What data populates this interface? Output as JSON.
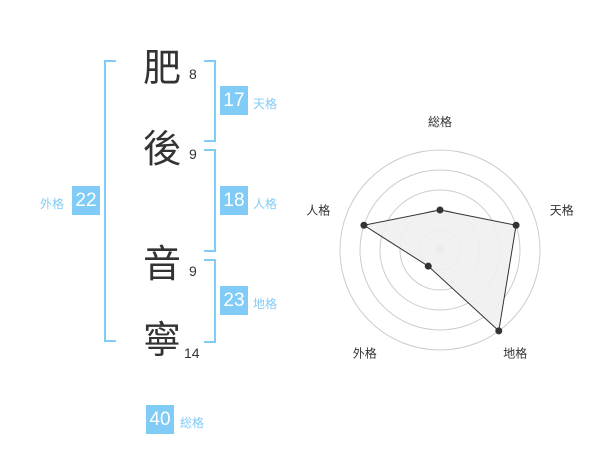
{
  "name": {
    "characters": [
      {
        "char": "肥",
        "strokes": "8"
      },
      {
        "char": "後",
        "strokes": "9"
      },
      {
        "char": "音",
        "strokes": "9"
      },
      {
        "char": "寧",
        "strokes": "14"
      }
    ]
  },
  "fortunes": {
    "tenkaku": {
      "label": "天格",
      "value": "17"
    },
    "jinkaku": {
      "label": "人格",
      "value": "18"
    },
    "chikaku": {
      "label": "地格",
      "value": "23"
    },
    "gaikaku": {
      "label": "外格",
      "value": "22"
    },
    "soukaku": {
      "label": "総格",
      "value": "40"
    }
  },
  "colors": {
    "accent": "#80ccf7",
    "radar_fill": "#f0f0f0",
    "radar_line": "#333333",
    "ring": "#cccccc"
  },
  "chart_data": {
    "type": "radar",
    "axes": [
      "総格",
      "天格",
      "地格",
      "外格",
      "人格"
    ],
    "values": [
      2,
      4,
      5,
      1,
      4
    ],
    "range": [
      0,
      5
    ],
    "rings": 5,
    "grid": true
  }
}
